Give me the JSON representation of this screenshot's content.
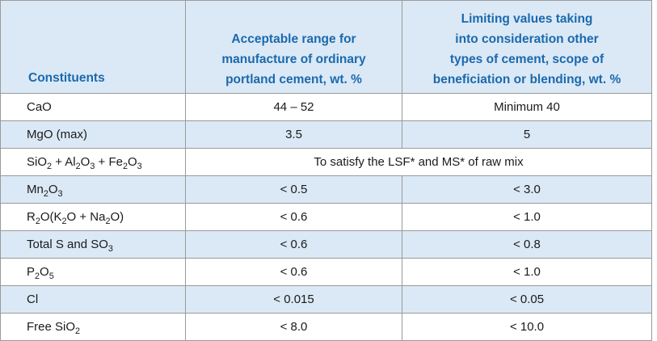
{
  "table": {
    "headers": [
      "Constituents",
      "Acceptable range for\nmanufacture of ordinary\nportland cement, wt. %",
      "Limiting values taking\ninto consideration other\ntypes of cement, scope of\nbeneficiation or blending, wt. %"
    ],
    "rows": [
      {
        "constituent": [
          {
            "t": "CaO"
          }
        ],
        "acceptable": "44 – 52",
        "limiting": "Minimum 40"
      },
      {
        "constituent": [
          {
            "t": "MgO (max)"
          }
        ],
        "acceptable": "3.5",
        "limiting": "5"
      },
      {
        "constituent": [
          {
            "t": "SiO"
          },
          {
            "s": "2"
          },
          {
            "t": " + Al"
          },
          {
            "s": "2"
          },
          {
            "t": "O"
          },
          {
            "s": "3"
          },
          {
            "t": " + Fe"
          },
          {
            "s": "2"
          },
          {
            "t": "O"
          },
          {
            "s": "3"
          }
        ],
        "merged": "To satisfy the LSF* and MS* of raw mix"
      },
      {
        "constituent": [
          {
            "t": "Mn"
          },
          {
            "s": "2"
          },
          {
            "t": "O"
          },
          {
            "s": "3"
          }
        ],
        "acceptable": "< 0.5",
        "limiting": "< 3.0"
      },
      {
        "constituent": [
          {
            "t": "R"
          },
          {
            "s": "2"
          },
          {
            "t": "O(K"
          },
          {
            "s": "2"
          },
          {
            "t": "O + Na"
          },
          {
            "s": "2"
          },
          {
            "t": "O)"
          }
        ],
        "acceptable": "< 0.6",
        "limiting": "< 1.0"
      },
      {
        "constituent": [
          {
            "t": "Total S and SO"
          },
          {
            "s": "3"
          }
        ],
        "acceptable": "< 0.6",
        "limiting": "< 0.8"
      },
      {
        "constituent": [
          {
            "t": "P"
          },
          {
            "s": "2"
          },
          {
            "t": "O"
          },
          {
            "s": "5"
          }
        ],
        "acceptable": "< 0.6",
        "limiting": "< 1.0"
      },
      {
        "constituent": [
          {
            "t": "Cl"
          }
        ],
        "acceptable": "< 0.015",
        "limiting": "< 0.05"
      },
      {
        "constituent": [
          {
            "t": "Free SiO"
          },
          {
            "s": "2"
          }
        ],
        "acceptable": "< 8.0",
        "limiting": "< 10.0"
      }
    ]
  },
  "colors": {
    "header_text": "#1b69ad",
    "band_fill": "#dbe9f6",
    "border": "#9a9a9a"
  }
}
